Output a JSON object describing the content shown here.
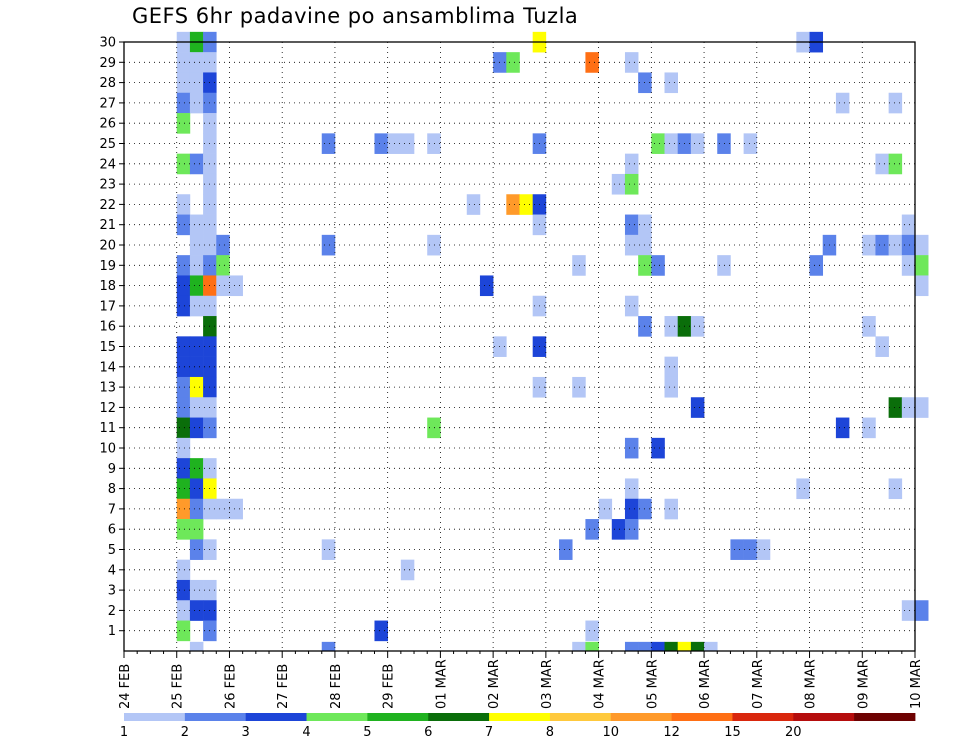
{
  "title": "GEFS 6hr padavine po ansamblima Tuzla",
  "chart_data": {
    "type": "heatmap",
    "title": "GEFS 6hr padavine po ansamblima Tuzla",
    "xlabel": "",
    "ylabel": "",
    "x_ticks": [
      "24 FEB",
      "25 FEB",
      "26 FEB",
      "27 FEB",
      "28 FEB",
      "29 FEB",
      "01 MAR",
      "02 MAR",
      "03 MAR",
      "04 MAR",
      "05 MAR",
      "06 MAR",
      "07 MAR",
      "08 MAR",
      "09 MAR",
      "10 MAR"
    ],
    "x_step": "6hr",
    "y_ticks": [
      1,
      2,
      3,
      4,
      5,
      6,
      7,
      8,
      9,
      10,
      11,
      12,
      13,
      14,
      15,
      16,
      17,
      18,
      19,
      20,
      21,
      22,
      23,
      24,
      25,
      26,
      27,
      28,
      29,
      30
    ],
    "ylim": [
      0,
      30
    ],
    "grid": "dotted",
    "colorbar": {
      "placement": "bottom",
      "ticks": [
        "1",
        "2",
        "3",
        "4",
        "5",
        "6",
        "7",
        "8",
        "10",
        "12",
        "15",
        "20"
      ],
      "colors": [
        "#b3c6f6",
        "#5b82ea",
        "#1d45d8",
        "#6ee85a",
        "#1fb21f",
        "#0a6e0a",
        "#ffff00",
        "#ffc93c",
        "#ff9a2a",
        "#ff6f14",
        "#d9270d",
        "#b50d0d",
        "#6e0202"
      ]
    },
    "cells": [
      [
        4,
        30,
        1
      ],
      [
        5,
        30,
        5
      ],
      [
        6,
        30,
        2
      ],
      [
        31,
        30,
        7
      ],
      [
        51,
        30,
        1
      ],
      [
        52,
        30,
        3
      ],
      [
        4,
        29,
        1
      ],
      [
        5,
        29,
        1
      ],
      [
        6,
        29,
        1
      ],
      [
        28,
        29,
        2
      ],
      [
        29,
        29,
        4
      ],
      [
        35,
        29,
        10
      ],
      [
        38,
        29,
        1
      ],
      [
        4,
        28,
        1
      ],
      [
        5,
        28,
        1
      ],
      [
        6,
        28,
        3
      ],
      [
        39,
        28,
        2
      ],
      [
        41,
        28,
        1
      ],
      [
        4,
        27,
        2
      ],
      [
        5,
        27,
        1
      ],
      [
        6,
        27,
        2
      ],
      [
        54,
        27,
        1
      ],
      [
        58,
        27,
        1
      ],
      [
        4,
        26,
        4
      ],
      [
        6,
        26,
        1
      ],
      [
        6,
        25,
        1
      ],
      [
        15,
        25,
        2
      ],
      [
        19,
        25,
        2
      ],
      [
        20,
        25,
        1
      ],
      [
        21,
        25,
        1
      ],
      [
        23,
        25,
        1
      ],
      [
        31,
        25,
        2
      ],
      [
        40,
        25,
        4
      ],
      [
        41,
        25,
        1
      ],
      [
        42,
        25,
        2
      ],
      [
        43,
        25,
        1
      ],
      [
        45,
        25,
        2
      ],
      [
        47,
        25,
        1
      ],
      [
        4,
        24,
        4
      ],
      [
        5,
        24,
        2
      ],
      [
        6,
        24,
        1
      ],
      [
        38,
        24,
        1
      ],
      [
        57,
        24,
        1
      ],
      [
        58,
        24,
        4
      ],
      [
        6,
        23,
        1
      ],
      [
        37,
        23,
        1
      ],
      [
        38,
        23,
        4
      ],
      [
        4,
        22,
        1
      ],
      [
        6,
        22,
        1
      ],
      [
        26,
        22,
        1
      ],
      [
        29,
        22,
        9
      ],
      [
        30,
        22,
        7
      ],
      [
        31,
        22,
        3
      ],
      [
        4,
        21,
        2
      ],
      [
        5,
        21,
        1
      ],
      [
        6,
        21,
        1
      ],
      [
        31,
        21,
        1
      ],
      [
        38,
        21,
        2
      ],
      [
        39,
        21,
        1
      ],
      [
        59,
        21,
        1
      ],
      [
        5,
        20,
        1
      ],
      [
        6,
        20,
        1
      ],
      [
        7,
        20,
        2
      ],
      [
        15,
        20,
        2
      ],
      [
        23,
        20,
        1
      ],
      [
        38,
        20,
        1
      ],
      [
        39,
        20,
        1
      ],
      [
        53,
        20,
        2
      ],
      [
        56,
        20,
        1
      ],
      [
        57,
        20,
        2
      ],
      [
        58,
        20,
        1
      ],
      [
        59,
        20,
        2
      ],
      [
        60,
        20,
        1
      ],
      [
        4,
        19,
        2
      ],
      [
        5,
        19,
        1
      ],
      [
        6,
        19,
        2
      ],
      [
        7,
        19,
        4
      ],
      [
        34,
        19,
        1
      ],
      [
        39,
        19,
        4
      ],
      [
        40,
        19,
        2
      ],
      [
        45,
        19,
        1
      ],
      [
        52,
        19,
        2
      ],
      [
        59,
        19,
        1
      ],
      [
        60,
        19,
        4
      ],
      [
        4,
        18,
        3
      ],
      [
        5,
        18,
        5
      ],
      [
        6,
        18,
        10
      ],
      [
        7,
        18,
        1
      ],
      [
        8,
        18,
        1
      ],
      [
        27,
        18,
        3
      ],
      [
        60,
        18,
        1
      ],
      [
        4,
        17,
        3
      ],
      [
        5,
        17,
        1
      ],
      [
        6,
        17,
        1
      ],
      [
        31,
        17,
        1
      ],
      [
        38,
        17,
        1
      ],
      [
        6,
        16,
        6
      ],
      [
        39,
        16,
        2
      ],
      [
        41,
        16,
        1
      ],
      [
        42,
        16,
        6
      ],
      [
        43,
        16,
        1
      ],
      [
        56,
        16,
        1
      ],
      [
        4,
        15,
        3
      ],
      [
        5,
        15,
        3
      ],
      [
        6,
        15,
        3
      ],
      [
        28,
        15,
        1
      ],
      [
        31,
        15,
        3
      ],
      [
        57,
        15,
        1
      ],
      [
        4,
        14,
        3
      ],
      [
        5,
        14,
        3
      ],
      [
        6,
        14,
        3
      ],
      [
        41,
        14,
        1
      ],
      [
        4,
        13,
        2
      ],
      [
        5,
        13,
        7
      ],
      [
        6,
        13,
        3
      ],
      [
        31,
        13,
        1
      ],
      [
        34,
        13,
        1
      ],
      [
        41,
        13,
        1
      ],
      [
        4,
        12,
        2
      ],
      [
        5,
        12,
        1
      ],
      [
        6,
        12,
        1
      ],
      [
        43,
        12,
        3
      ],
      [
        58,
        12,
        6
      ],
      [
        59,
        12,
        1
      ],
      [
        60,
        12,
        1
      ],
      [
        4,
        11,
        6
      ],
      [
        5,
        11,
        3
      ],
      [
        6,
        11,
        2
      ],
      [
        23,
        11,
        4
      ],
      [
        54,
        11,
        3
      ],
      [
        56,
        11,
        1
      ],
      [
        4,
        10,
        1
      ],
      [
        38,
        10,
        2
      ],
      [
        40,
        10,
        3
      ],
      [
        4,
        9,
        3
      ],
      [
        5,
        9,
        5
      ],
      [
        6,
        9,
        1
      ],
      [
        4,
        8,
        5
      ],
      [
        5,
        8,
        3
      ],
      [
        6,
        8,
        7
      ],
      [
        38,
        8,
        1
      ],
      [
        51,
        8,
        1
      ],
      [
        58,
        8,
        1
      ],
      [
        4,
        7,
        9
      ],
      [
        5,
        7,
        2
      ],
      [
        6,
        7,
        1
      ],
      [
        7,
        7,
        1
      ],
      [
        8,
        7,
        1
      ],
      [
        36,
        7,
        1
      ],
      [
        38,
        7,
        3
      ],
      [
        39,
        7,
        2
      ],
      [
        41,
        7,
        1
      ],
      [
        4,
        6,
        4
      ],
      [
        5,
        6,
        4
      ],
      [
        35,
        6,
        2
      ],
      [
        37,
        6,
        3
      ],
      [
        38,
        6,
        2
      ],
      [
        5,
        5,
        2
      ],
      [
        6,
        5,
        1
      ],
      [
        15,
        5,
        1
      ],
      [
        33,
        5,
        2
      ],
      [
        46,
        5,
        2
      ],
      [
        47,
        5,
        2
      ],
      [
        48,
        5,
        1
      ],
      [
        4,
        4,
        1
      ],
      [
        21,
        4,
        1
      ],
      [
        4,
        3,
        3
      ],
      [
        5,
        3,
        1
      ],
      [
        6,
        3,
        1
      ],
      [
        4,
        2,
        1
      ],
      [
        5,
        2,
        3
      ],
      [
        6,
        2,
        3
      ],
      [
        59,
        2,
        1
      ],
      [
        60,
        2,
        2
      ],
      [
        4,
        1,
        4
      ],
      [
        6,
        1,
        2
      ],
      [
        19,
        1,
        3
      ],
      [
        35,
        1,
        1
      ],
      [
        5,
        0,
        1
      ],
      [
        15,
        0,
        2
      ],
      [
        34,
        0,
        1
      ],
      [
        35,
        0,
        4
      ],
      [
        38,
        0,
        2
      ],
      [
        39,
        0,
        2
      ],
      [
        40,
        0,
        3
      ],
      [
        41,
        0,
        6
      ],
      [
        42,
        0,
        7
      ],
      [
        43,
        0,
        6
      ],
      [
        44,
        0,
        1
      ]
    ]
  }
}
